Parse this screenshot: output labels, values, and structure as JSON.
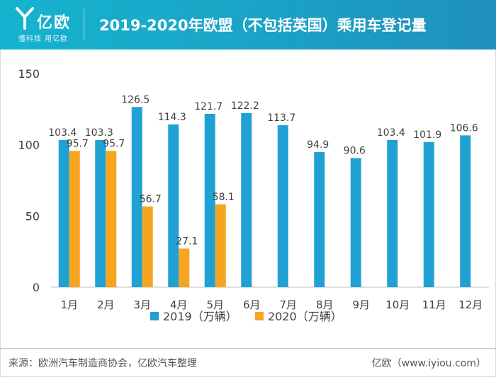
{
  "header": {
    "logo_text": "亿欧",
    "logo_slogan": "懂科技 用亿欧",
    "title": "2019-2020年欧盟（不包括英国）乘用车登记量"
  },
  "colors": {
    "series_2019": "#1fa2d3",
    "series_2020": "#f7a51f",
    "header": "#1aa6c8"
  },
  "chart_data": {
    "type": "bar",
    "title": "2019-2020年欧盟（不包括英国）乘用车登记量",
    "categories": [
      "1月",
      "2月",
      "3月",
      "4月",
      "5月",
      "6月",
      "7月",
      "8月",
      "9月",
      "10月",
      "11月",
      "12月"
    ],
    "series": [
      {
        "name": "2019（万辆）",
        "values": [
          103.4,
          103.3,
          126.5,
          114.3,
          121.7,
          122.2,
          113.7,
          94.9,
          90.6,
          103.4,
          101.9,
          106.6
        ]
      },
      {
        "name": "2020（万辆）",
        "values": [
          95.7,
          95.7,
          56.7,
          27.1,
          58.1,
          null,
          null,
          null,
          null,
          null,
          null,
          null
        ]
      }
    ],
    "yticks": [
      0,
      50,
      100,
      150
    ],
    "ylim": [
      0,
      150
    ],
    "xlabel": "",
    "ylabel": "",
    "legend": "bottom-center",
    "grid": false
  },
  "footer": {
    "source": "来源：欧洲汽车制造商协会，亿欧汽车整理",
    "credit": "亿欧（www.iyiou.com）"
  }
}
